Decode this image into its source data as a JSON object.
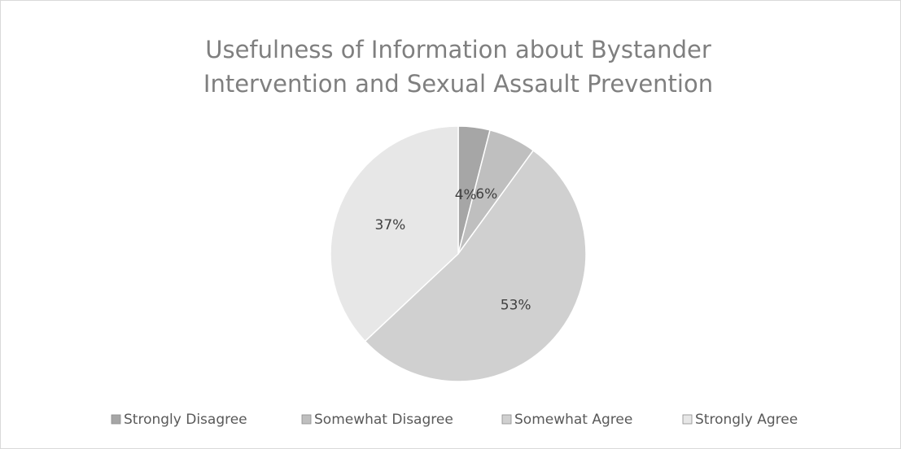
{
  "chart_data": {
    "type": "pie",
    "title": "Usefulness of Information about Bystander Intervention and Sexual Assault Prevention",
    "title_lines": [
      "Usefulness of Information about Bystander",
      "Intervention and Sexual Assault Prevention"
    ],
    "categories": [
      "Strongly Disagree",
      "Somewhat Disagree",
      "Somewhat Agree",
      "Strongly Agree"
    ],
    "values": [
      4,
      6,
      53,
      37
    ],
    "labels": [
      "4%",
      "6%",
      "53%",
      "37%"
    ],
    "unit": "%",
    "colors": [
      "#a6a6a6",
      "#bfbfbf",
      "#d0d0d0",
      "#e7e7e7"
    ],
    "legend_position": "bottom",
    "grid": false
  }
}
